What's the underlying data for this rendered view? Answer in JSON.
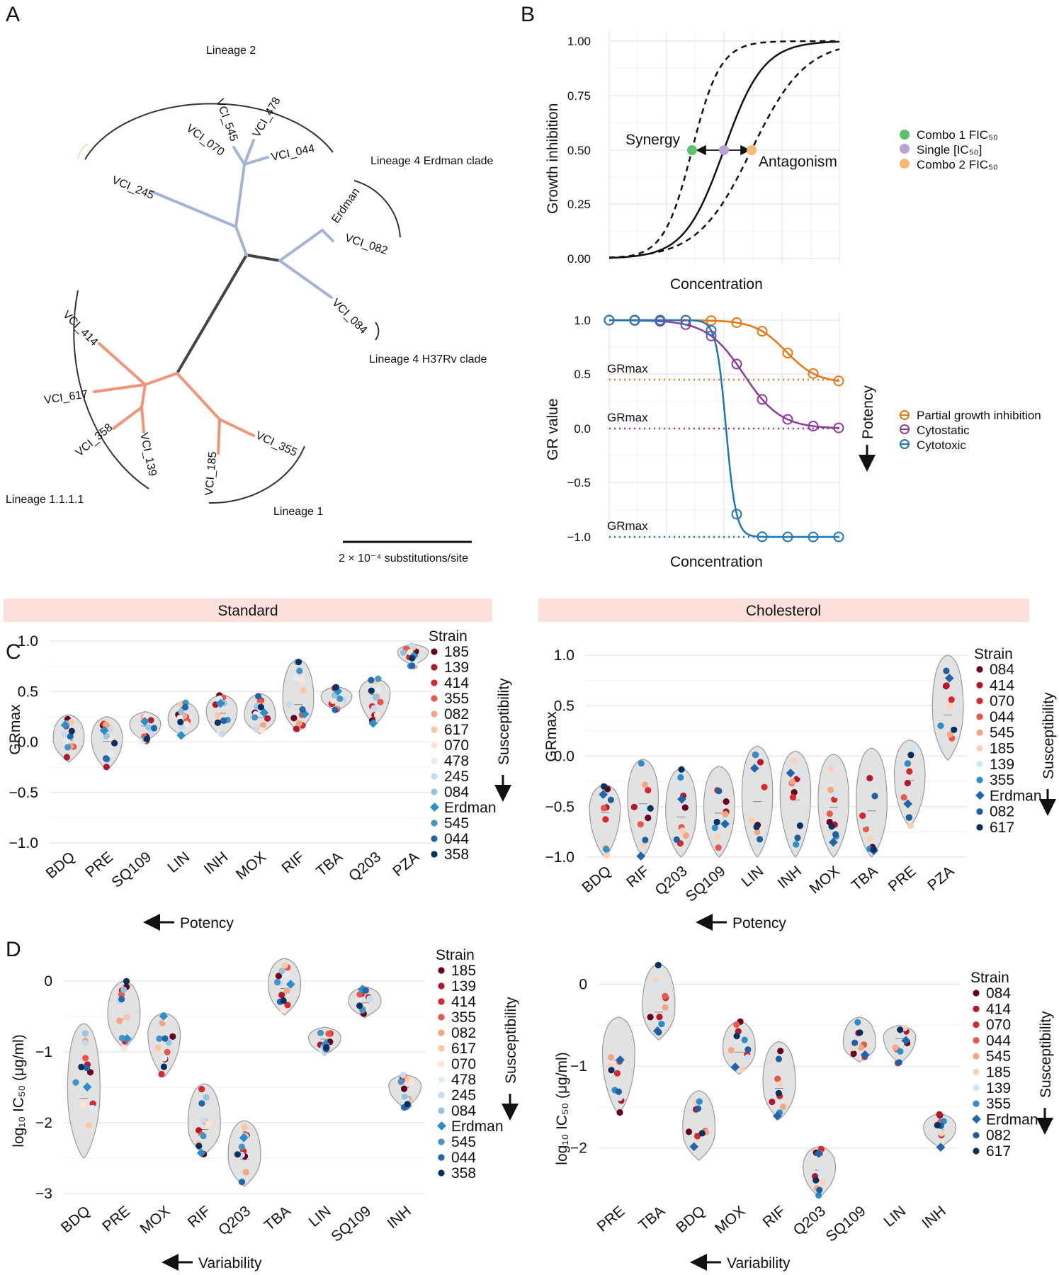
{
  "panels": {
    "a": "A",
    "b": "B",
    "c": "C",
    "d": "D"
  },
  "tree": {
    "lineages": [
      "Lineage 2",
      "Lineage 4 Erdman clade",
      "Lineage 4 H37Rv clade",
      "Lineage 1.1.1.1",
      "Lineage 1"
    ],
    "tips": [
      "VCI_545",
      "VCI_478",
      "VCI_070",
      "VCI_044",
      "VCI_245",
      "Erdman",
      "VCI_082",
      "VCI_084",
      "VCI_414",
      "VCI_617",
      "VCI_358",
      "VCI_139",
      "VCI_185",
      "VCI_355"
    ],
    "scale_label": "2 × 10⁻⁴ substitutions/site"
  },
  "panel_b_top": {
    "xlabel": "Concentration",
    "ylabel": "Growth inhibition",
    "yticks": [
      "0.00",
      "0.25",
      "0.50",
      "0.75",
      "1.00"
    ],
    "annotations": {
      "synergy": "Synergy",
      "antagonism": "Antagonism"
    },
    "legend": [
      "Combo 1 FIC₅₀",
      "Single [IC₅₀]",
      "Combo 2 FIC₅₀"
    ],
    "colors": {
      "combo1": "#5dc36a",
      "single": "#b9a3d6",
      "combo2": "#f8b872"
    }
  },
  "panel_b_bottom": {
    "xlabel": "Concentration",
    "ylabel": "GR value",
    "yticks": [
      "−1.0",
      "−0.5",
      "0.0",
      "0.5",
      "1.0"
    ],
    "grmax": "GRmax",
    "potency": "Potency",
    "legend": [
      "Partial growth inhibition",
      "Cytostatic",
      "Cytotoxic"
    ],
    "colors": {
      "partial": "#ea7514",
      "cytostatic": "#8e3b9e",
      "cytotoxic": "#1f77b4"
    }
  },
  "facets": {
    "standard": "Standard",
    "cholesterol": "Cholesterol"
  },
  "axis_text": {
    "grmax": "GRmax",
    "log_ic50": "log₁₀ IC₅₀ (μg/ml)",
    "potency": "Potency",
    "variability": "Variability",
    "susceptibility": "Susceptibility",
    "strain": "Strain"
  },
  "chart_data": [
    {
      "type": "scatter",
      "panel": "C-Standard",
      "ylabel": "GRmax",
      "xlabel": "Potency",
      "categories": [
        "BDQ",
        "PRE",
        "SQ109",
        "LIN",
        "INH",
        "MOX",
        "RIF",
        "TBA",
        "Q203",
        "PZA"
      ],
      "yticks": [
        "−1.0",
        "−0.5",
        "0.0",
        "0.5",
        "1.0"
      ],
      "ylim": [
        -1.0,
        1.0
      ],
      "strains": [
        "185",
        "139",
        "414",
        "355",
        "082",
        "617",
        "070",
        "478",
        "245",
        "084",
        "Erdman",
        "545",
        "044",
        "358"
      ],
      "ranges": [
        [
          -0.2,
          0.27
        ],
        [
          -0.28,
          0.25
        ],
        [
          0.0,
          0.3
        ],
        [
          0.05,
          0.4
        ],
        [
          0.05,
          0.47
        ],
        [
          0.08,
          0.48
        ],
        [
          0.1,
          0.82
        ],
        [
          0.3,
          0.55
        ],
        [
          0.17,
          0.63
        ],
        [
          0.75,
          0.97
        ]
      ]
    },
    {
      "type": "scatter",
      "panel": "C-Cholesterol",
      "ylabel": "GRmax",
      "xlabel": "Potency",
      "categories": [
        "BDQ",
        "RIF",
        "Q203",
        "SQ109",
        "LIN",
        "INH",
        "MOX",
        "TBA",
        "PRE",
        "PZA"
      ],
      "yticks": [
        "−1.0",
        "−0.5",
        "0.0",
        "0.5",
        "1.0"
      ],
      "ylim": [
        -1.0,
        1.0
      ],
      "strains": [
        "084",
        "414",
        "070",
        "044",
        "545",
        "185",
        "139",
        "355",
        "Erdman",
        "082",
        "617"
      ],
      "ranges": [
        [
          -1.0,
          -0.28
        ],
        [
          -1.0,
          -0.03
        ],
        [
          -1.0,
          -0.12
        ],
        [
          -1.0,
          -0.1
        ],
        [
          -1.0,
          0.1
        ],
        [
          -1.0,
          0.05
        ],
        [
          -1.0,
          0.02
        ],
        [
          -1.0,
          0.08
        ],
        [
          -0.7,
          0.16
        ],
        [
          -0.04,
          1.0
        ]
      ]
    },
    {
      "type": "scatter",
      "panel": "D-Standard",
      "ylabel": "log₁₀ IC₅₀ (μg/ml)",
      "xlabel": "Variability",
      "categories": [
        "BDQ",
        "PRE",
        "MOX",
        "RIF",
        "Q203",
        "TBA",
        "LIN",
        "SQ109",
        "INH"
      ],
      "yticks": [
        "−3",
        "−2",
        "−1",
        "0"
      ],
      "ylim": [
        -3.05,
        0.3
      ],
      "strains": [
        "185",
        "139",
        "414",
        "355",
        "082",
        "617",
        "070",
        "478",
        "245",
        "084",
        "Erdman",
        "545",
        "044",
        "358"
      ],
      "ranges": [
        [
          -2.5,
          -0.6
        ],
        [
          -0.95,
          0.0
        ],
        [
          -1.35,
          -0.45
        ],
        [
          -2.45,
          -1.45
        ],
        [
          -2.9,
          -1.97
        ],
        [
          -0.48,
          0.32
        ],
        [
          -1.05,
          -0.65
        ],
        [
          -0.52,
          -0.08
        ],
        [
          -1.8,
          -1.32
        ]
      ]
    },
    {
      "type": "scatter",
      "panel": "D-Cholesterol",
      "ylabel": "log₁₀ IC₅₀ (μg/ml)",
      "xlabel": "Variability",
      "categories": [
        "PRE",
        "TBA",
        "BDQ",
        "MOX",
        "RIF",
        "Q203",
        "SQ109",
        "LIN",
        "INH"
      ],
      "yticks": [
        "−2",
        "−1",
        "0"
      ],
      "ylim": [
        -2.6,
        0.3
      ],
      "strains": [
        "084",
        "414",
        "070",
        "044",
        "545",
        "185",
        "139",
        "355",
        "Erdman",
        "082",
        "617"
      ],
      "ranges": [
        [
          -1.58,
          -0.4
        ],
        [
          -0.68,
          0.25
        ],
        [
          -2.15,
          -1.3
        ],
        [
          -1.1,
          -0.45
        ],
        [
          -1.65,
          -0.7
        ],
        [
          -2.6,
          -1.98
        ],
        [
          -0.95,
          -0.4
        ],
        [
          -0.97,
          -0.5
        ],
        [
          -2.0,
          -1.58
        ]
      ]
    }
  ]
}
